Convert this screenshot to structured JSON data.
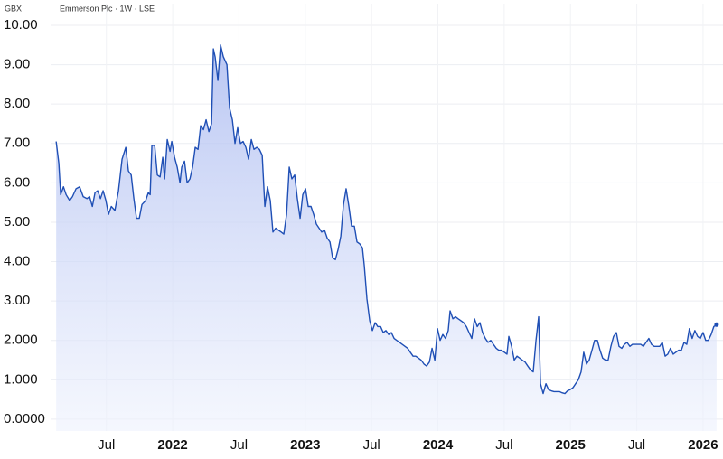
{
  "chart_data": {
    "type": "area",
    "title": "Emmerson Plc · 1W · LSE",
    "y_unit": "GBX",
    "color": "#1f4fb5",
    "x": [
      2021.121,
      2021.141,
      2021.155,
      2021.176,
      2021.196,
      2021.223,
      2021.244,
      2021.271,
      2021.298,
      2021.325,
      2021.353,
      2021.373,
      2021.394,
      2021.414,
      2021.434,
      2021.455,
      2021.475,
      2021.496,
      2021.516,
      2021.537,
      2021.564,
      2021.591,
      2021.618,
      2021.646,
      2021.666,
      2021.687,
      2021.707,
      2021.727,
      2021.748,
      2021.768,
      2021.796,
      2021.816,
      2021.83,
      2021.843,
      2021.864,
      2021.884,
      2021.905,
      2021.925,
      2021.939,
      2021.959,
      2021.98,
      2021.993,
      2022.014,
      2022.034,
      2022.055,
      2022.068,
      2022.089,
      2022.109,
      2022.13,
      2022.15,
      2022.17,
      2022.191,
      2022.211,
      2022.232,
      2022.252,
      2022.273,
      2022.293,
      2022.307,
      2022.32,
      2022.341,
      2022.361,
      2022.382,
      2022.409,
      2022.429,
      2022.45,
      2022.47,
      2022.49,
      2022.511,
      2022.531,
      2022.552,
      2022.572,
      2022.593,
      2022.613,
      2022.634,
      2022.654,
      2022.675,
      2022.695,
      2022.715,
      2022.736,
      2022.756,
      2022.777,
      2022.797,
      2022.818,
      2022.838,
      2022.859,
      2022.879,
      2022.899,
      2022.92,
      2022.94,
      2022.961,
      2022.981,
      2023.002,
      2023.022,
      2023.043,
      2023.063,
      2023.084,
      2023.104,
      2023.124,
      2023.145,
      2023.165,
      2023.186,
      2023.206,
      2023.227,
      2023.247,
      2023.268,
      2023.288,
      2023.308,
      2023.329,
      2023.349,
      2023.37,
      2023.39,
      2023.411,
      2023.431,
      2023.445,
      2023.465,
      2023.486,
      2023.506,
      2023.527,
      2023.547,
      2023.568,
      2023.588,
      2023.608,
      2023.629,
      2023.649,
      2023.67,
      2023.69,
      2023.711,
      2023.731,
      2023.752,
      2023.772,
      2023.792,
      2023.813,
      2023.833,
      2023.854,
      2023.874,
      2023.895,
      2023.915,
      2023.936,
      2023.956,
      2023.977,
      2023.997,
      2024.017,
      2024.037,
      2024.058,
      2024.078,
      2024.092,
      2024.113,
      2024.133,
      2024.153,
      2024.174,
      2024.194,
      2024.215,
      2024.235,
      2024.256,
      2024.276,
      2024.297,
      2024.317,
      2024.337,
      2024.358,
      2024.378,
      2024.399,
      2024.419,
      2024.44,
      2024.46,
      2024.481,
      2024.501,
      2024.521,
      2024.535,
      2024.556,
      2024.576,
      2024.597,
      2024.617,
      2024.637,
      2024.658,
      2024.678,
      2024.699,
      2024.719,
      2024.74,
      2024.76,
      2024.774,
      2024.794,
      2024.815,
      2024.835,
      2024.855,
      2024.876,
      2024.896,
      2024.917,
      2024.937,
      2024.958,
      2024.978,
      2024.998,
      2025.019,
      2025.039,
      2025.059,
      2025.08,
      2025.1,
      2025.121,
      2025.141,
      2025.162,
      2025.182,
      2025.203,
      2025.223,
      2025.243,
      2025.264,
      2025.284,
      2025.305,
      2025.325,
      2025.346,
      2025.366,
      2025.387,
      2025.407,
      2025.427,
      2025.448,
      2025.468,
      2025.489,
      2025.509,
      2025.53,
      2025.55,
      2025.57,
      2025.591,
      2025.611,
      2025.632,
      2025.652,
      2025.673,
      2025.693,
      2025.714,
      2025.734,
      2025.754,
      2025.775,
      2025.795,
      2025.816,
      2025.836,
      2025.857,
      2025.877,
      2025.897,
      2025.918,
      2025.938,
      2025.959,
      2025.979,
      2026.0,
      2026.02,
      2026.04,
      2026.061,
      2026.081,
      2026.102
    ],
    "values": [
      7.05,
      6.5,
      5.7,
      5.9,
      5.7,
      5.55,
      5.65,
      5.85,
      5.9,
      5.65,
      5.6,
      5.65,
      5.4,
      5.75,
      5.8,
      5.6,
      5.8,
      5.55,
      5.2,
      5.4,
      5.3,
      5.8,
      6.6,
      6.9,
      6.3,
      6.2,
      5.6,
      5.1,
      5.1,
      5.45,
      5.55,
      5.75,
      5.7,
      6.95,
      6.95,
      6.2,
      6.15,
      6.65,
      6.1,
      7.1,
      6.8,
      7.05,
      6.65,
      6.4,
      6.0,
      6.4,
      6.55,
      6.0,
      6.1,
      6.4,
      6.9,
      6.85,
      7.45,
      7.35,
      7.6,
      7.3,
      7.5,
      9.4,
      9.2,
      8.6,
      9.5,
      9.2,
      9.0,
      7.9,
      7.6,
      7.0,
      7.4,
      7.0,
      7.05,
      6.9,
      6.6,
      7.1,
      6.85,
      6.9,
      6.85,
      6.7,
      5.4,
      5.9,
      5.55,
      4.75,
      4.85,
      4.8,
      4.75,
      4.7,
      5.2,
      6.4,
      6.1,
      6.2,
      5.6,
      5.1,
      5.7,
      5.85,
      5.4,
      5.4,
      5.2,
      4.95,
      4.85,
      4.75,
      4.8,
      4.6,
      4.5,
      4.1,
      4.05,
      4.3,
      4.65,
      5.45,
      5.85,
      5.4,
      4.9,
      4.9,
      4.5,
      4.45,
      4.35,
      3.9,
      3.05,
      2.5,
      2.25,
      2.45,
      2.35,
      2.35,
      2.2,
      2.25,
      2.15,
      2.2,
      2.05,
      2.0,
      1.95,
      1.9,
      1.85,
      1.8,
      1.7,
      1.6,
      1.6,
      1.55,
      1.5,
      1.4,
      1.35,
      1.45,
      1.8,
      1.5,
      2.3,
      2.0,
      2.15,
      2.05,
      2.25,
      2.75,
      2.55,
      2.6,
      2.55,
      2.5,
      2.45,
      2.35,
      2.2,
      2.05,
      2.55,
      2.35,
      2.45,
      2.2,
      2.05,
      1.95,
      2.0,
      1.9,
      1.8,
      1.75,
      1.75,
      1.7,
      1.65,
      2.1,
      1.85,
      1.5,
      1.6,
      1.55,
      1.5,
      1.45,
      1.35,
      1.25,
      1.2,
      2.0,
      2.6,
      0.9,
      0.65,
      0.9,
      0.75,
      0.72,
      0.7,
      0.7,
      0.7,
      0.67,
      0.65,
      0.72,
      0.75,
      0.8,
      0.9,
      1.0,
      1.2,
      1.7,
      1.4,
      1.5,
      1.75,
      2.0,
      2.0,
      1.75,
      1.55,
      1.5,
      1.5,
      1.85,
      2.1,
      2.2,
      1.85,
      1.8,
      1.9,
      1.95,
      1.85,
      1.9,
      1.9,
      1.9,
      1.9,
      1.85,
      1.95,
      2.05,
      1.9,
      1.85,
      1.85,
      1.85,
      1.95,
      1.6,
      1.65,
      1.8,
      1.65,
      1.7,
      1.75,
      1.75,
      1.95,
      1.9,
      2.3,
      2.05,
      2.25,
      2.1,
      2.05,
      2.2,
      2.0,
      2.0,
      2.15,
      2.35,
      2.4
    ],
    "xlim": [
      2021.12,
      2026.13
    ],
    "ylim": [
      -0.3,
      10.55
    ],
    "xticks": [
      {
        "value": 2021.5,
        "label": "Jul"
      },
      {
        "value": 2022,
        "label": "2022"
      },
      {
        "value": 2022.5,
        "label": "Jul"
      },
      {
        "value": 2023,
        "label": "2023"
      },
      {
        "value": 2023.5,
        "label": "Jul"
      },
      {
        "value": 2024,
        "label": "2024"
      },
      {
        "value": 2024.5,
        "label": "Jul"
      },
      {
        "value": 2025,
        "label": "2025"
      },
      {
        "value": 2025.5,
        "label": "Jul"
      },
      {
        "value": 2026,
        "label": "2026"
      }
    ],
    "yticks": [
      {
        "value": 10,
        "label": "10.00"
      },
      {
        "value": 9,
        "label": "9.00"
      },
      {
        "value": 8,
        "label": "8.00"
      },
      {
        "value": 7,
        "label": "7.00"
      },
      {
        "value": 6,
        "label": "6.00"
      },
      {
        "value": 5,
        "label": "5.00"
      },
      {
        "value": 4,
        "label": "4.00"
      },
      {
        "value": 3,
        "label": "3.00"
      },
      {
        "value": 2,
        "label": "2.000"
      },
      {
        "value": 1,
        "label": "1.000"
      },
      {
        "value": 0,
        "label": "0.0000"
      }
    ],
    "grid": true
  }
}
